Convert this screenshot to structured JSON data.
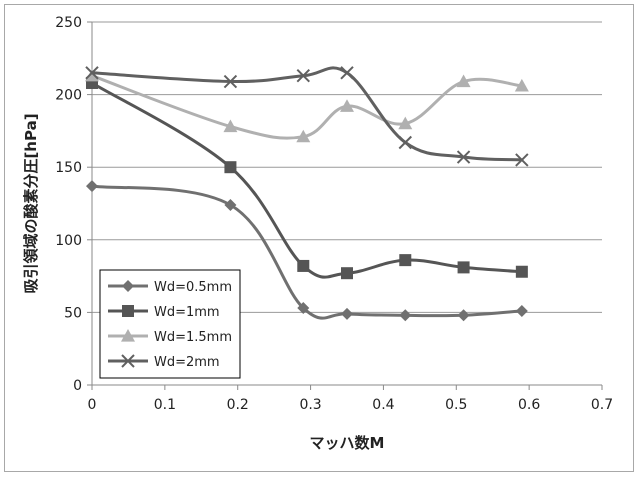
{
  "chart_data": {
    "type": "line",
    "title": "",
    "xlabel": "マッハ数M",
    "ylabel": "吸引領域の酸素分圧[hPa]",
    "xlim": [
      0,
      0.7
    ],
    "ylim": [
      0,
      250
    ],
    "x_ticks": [
      "0",
      "0.1",
      "0.2",
      "0.3",
      "0.4",
      "0.5",
      "0.6",
      "0.7"
    ],
    "y_ticks": [
      "0",
      "50",
      "100",
      "150",
      "200",
      "250"
    ],
    "grid": "horizontal",
    "legend_position": "lower-left",
    "series": [
      {
        "name": "Wd=0.5mm",
        "marker": "diamond",
        "color": "#707070",
        "x": [
          0,
          0.19,
          0.29,
          0.35,
          0.43,
          0.51,
          0.59
        ],
        "y": [
          137,
          124,
          53,
          49,
          48,
          48,
          51
        ]
      },
      {
        "name": "Wd=1mm",
        "marker": "square",
        "color": "#555555",
        "x": [
          0,
          0.19,
          0.29,
          0.35,
          0.43,
          0.51,
          0.59
        ],
        "y": [
          208,
          150,
          82,
          77,
          86,
          81,
          78
        ]
      },
      {
        "name": "Wd=1.5mm",
        "marker": "triangle",
        "color": "#b0b0b0",
        "x": [
          0,
          0.19,
          0.29,
          0.35,
          0.43,
          0.51,
          0.59
        ],
        "y": [
          213,
          178,
          171,
          192,
          180,
          209,
          206
        ]
      },
      {
        "name": "Wd=2mm",
        "marker": "x",
        "color": "#606060",
        "x": [
          0,
          0.19,
          0.29,
          0.35,
          0.43,
          0.51,
          0.59
        ],
        "y": [
          215,
          209,
          213,
          215,
          167,
          157,
          155
        ]
      }
    ]
  }
}
